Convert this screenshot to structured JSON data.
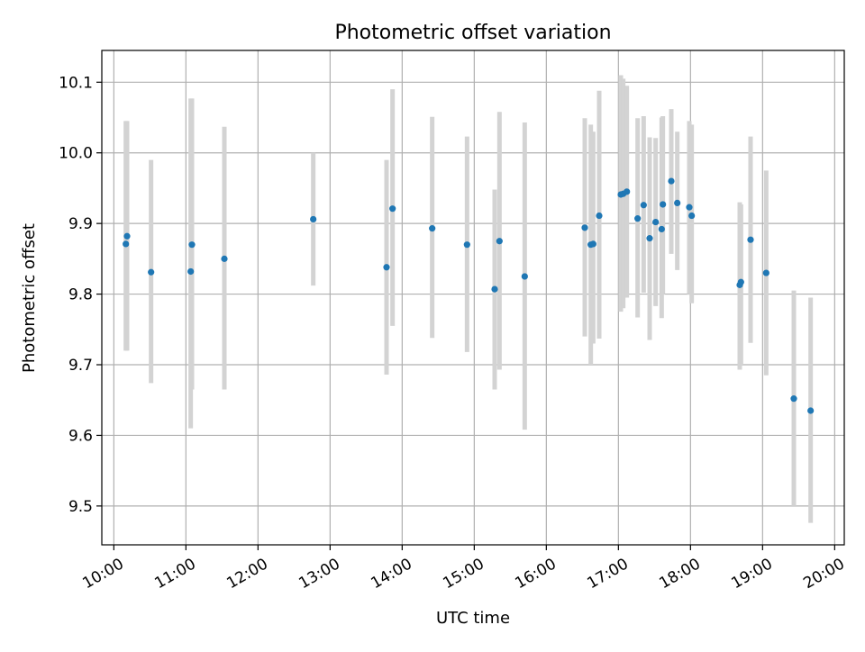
{
  "chart_data": {
    "type": "scatter",
    "title": "Photometric offset variation",
    "xlabel": "UTC time",
    "ylabel": "Photometric offset",
    "xlim": [
      "09:50",
      "20:08"
    ],
    "ylim": [
      9.445,
      10.145
    ],
    "x_ticks": [
      "10:00",
      "11:00",
      "12:00",
      "13:00",
      "14:00",
      "15:00",
      "16:00",
      "17:00",
      "18:00",
      "19:00",
      "20:00"
    ],
    "y_ticks": [
      9.5,
      9.6,
      9.7,
      9.8,
      9.9,
      10.0,
      10.1
    ],
    "y_tick_labels": [
      "9.5",
      "9.6",
      "9.7",
      "9.8",
      "9.9",
      "10.0",
      "10.1"
    ],
    "grid": true,
    "colors": {
      "point": "#1f77b4",
      "errorbar": "#d3d3d3",
      "grid": "#b0b0b0",
      "axes": "#000000"
    },
    "points": [
      {
        "x": "10:10",
        "y": 9.871,
        "err": [
          9.72,
          10.045
        ]
      },
      {
        "x": "10:11",
        "y": 9.882,
        "err": [
          9.72,
          10.045
        ]
      },
      {
        "x": "10:31",
        "y": 9.831,
        "err": [
          9.674,
          9.99
        ]
      },
      {
        "x": "11:04",
        "y": 9.832,
        "err": [
          9.61,
          10.077
        ]
      },
      {
        "x": "11:05",
        "y": 9.87,
        "err": [
          9.665,
          10.077
        ]
      },
      {
        "x": "11:32",
        "y": 9.85,
        "err": [
          9.665,
          10.037
        ]
      },
      {
        "x": "12:46",
        "y": 9.906,
        "err": [
          9.812,
          10.0
        ]
      },
      {
        "x": "13:47",
        "y": 9.838,
        "err": [
          9.686,
          9.99
        ]
      },
      {
        "x": "13:52",
        "y": 9.921,
        "err": [
          9.755,
          10.09
        ]
      },
      {
        "x": "14:25",
        "y": 9.893,
        "err": [
          9.738,
          10.051
        ]
      },
      {
        "x": "14:54",
        "y": 9.87,
        "err": [
          9.718,
          10.023
        ]
      },
      {
        "x": "15:17",
        "y": 9.807,
        "err": [
          9.665,
          9.948
        ]
      },
      {
        "x": "15:21",
        "y": 9.875,
        "err": [
          9.693,
          10.058
        ]
      },
      {
        "x": "15:42",
        "y": 9.825,
        "err": [
          9.608,
          10.043
        ]
      },
      {
        "x": "16:32",
        "y": 9.894,
        "err": [
          9.74,
          10.049
        ]
      },
      {
        "x": "16:37",
        "y": 9.87,
        "err": [
          9.7,
          10.04
        ]
      },
      {
        "x": "16:39",
        "y": 9.871,
        "err": [
          9.73,
          10.03
        ]
      },
      {
        "x": "16:44",
        "y": 9.911,
        "err": [
          9.737,
          10.088
        ]
      },
      {
        "x": "17:02",
        "y": 9.941,
        "err": [
          9.775,
          10.11
        ]
      },
      {
        "x": "17:04",
        "y": 9.942,
        "err": [
          9.78,
          10.105
        ]
      },
      {
        "x": "17:07",
        "y": 9.945,
        "err": [
          9.795,
          10.095
        ]
      },
      {
        "x": "17:16",
        "y": 9.907,
        "err": [
          9.767,
          10.049
        ]
      },
      {
        "x": "17:21",
        "y": 9.926,
        "err": [
          9.802,
          10.052
        ]
      },
      {
        "x": "17:26",
        "y": 9.879,
        "err": [
          9.735,
          10.022
        ]
      },
      {
        "x": "17:31",
        "y": 9.902,
        "err": [
          9.783,
          10.021
        ]
      },
      {
        "x": "17:36",
        "y": 9.892,
        "err": [
          9.766,
          10.05
        ]
      },
      {
        "x": "17:37",
        "y": 9.927,
        "err": [
          9.8,
          10.052
        ]
      },
      {
        "x": "17:44",
        "y": 9.96,
        "err": [
          9.857,
          10.062
        ]
      },
      {
        "x": "17:49",
        "y": 9.929,
        "err": [
          9.834,
          10.03
        ]
      },
      {
        "x": "17:59",
        "y": 9.923,
        "err": [
          9.8,
          10.045
        ]
      },
      {
        "x": "18:01",
        "y": 9.911,
        "err": [
          9.787,
          10.04
        ]
      },
      {
        "x": "18:41",
        "y": 9.813,
        "err": [
          9.693,
          9.93
        ]
      },
      {
        "x": "18:42",
        "y": 9.817,
        "err": [
          9.7,
          9.927
        ]
      },
      {
        "x": "18:50",
        "y": 9.877,
        "err": [
          9.731,
          10.023
        ]
      },
      {
        "x": "19:03",
        "y": 9.83,
        "err": [
          9.685,
          9.975
        ]
      },
      {
        "x": "19:26",
        "y": 9.652,
        "err": [
          9.5,
          9.805
        ]
      },
      {
        "x": "19:40",
        "y": 9.635,
        "err": [
          9.476,
          9.795
        ]
      }
    ]
  }
}
